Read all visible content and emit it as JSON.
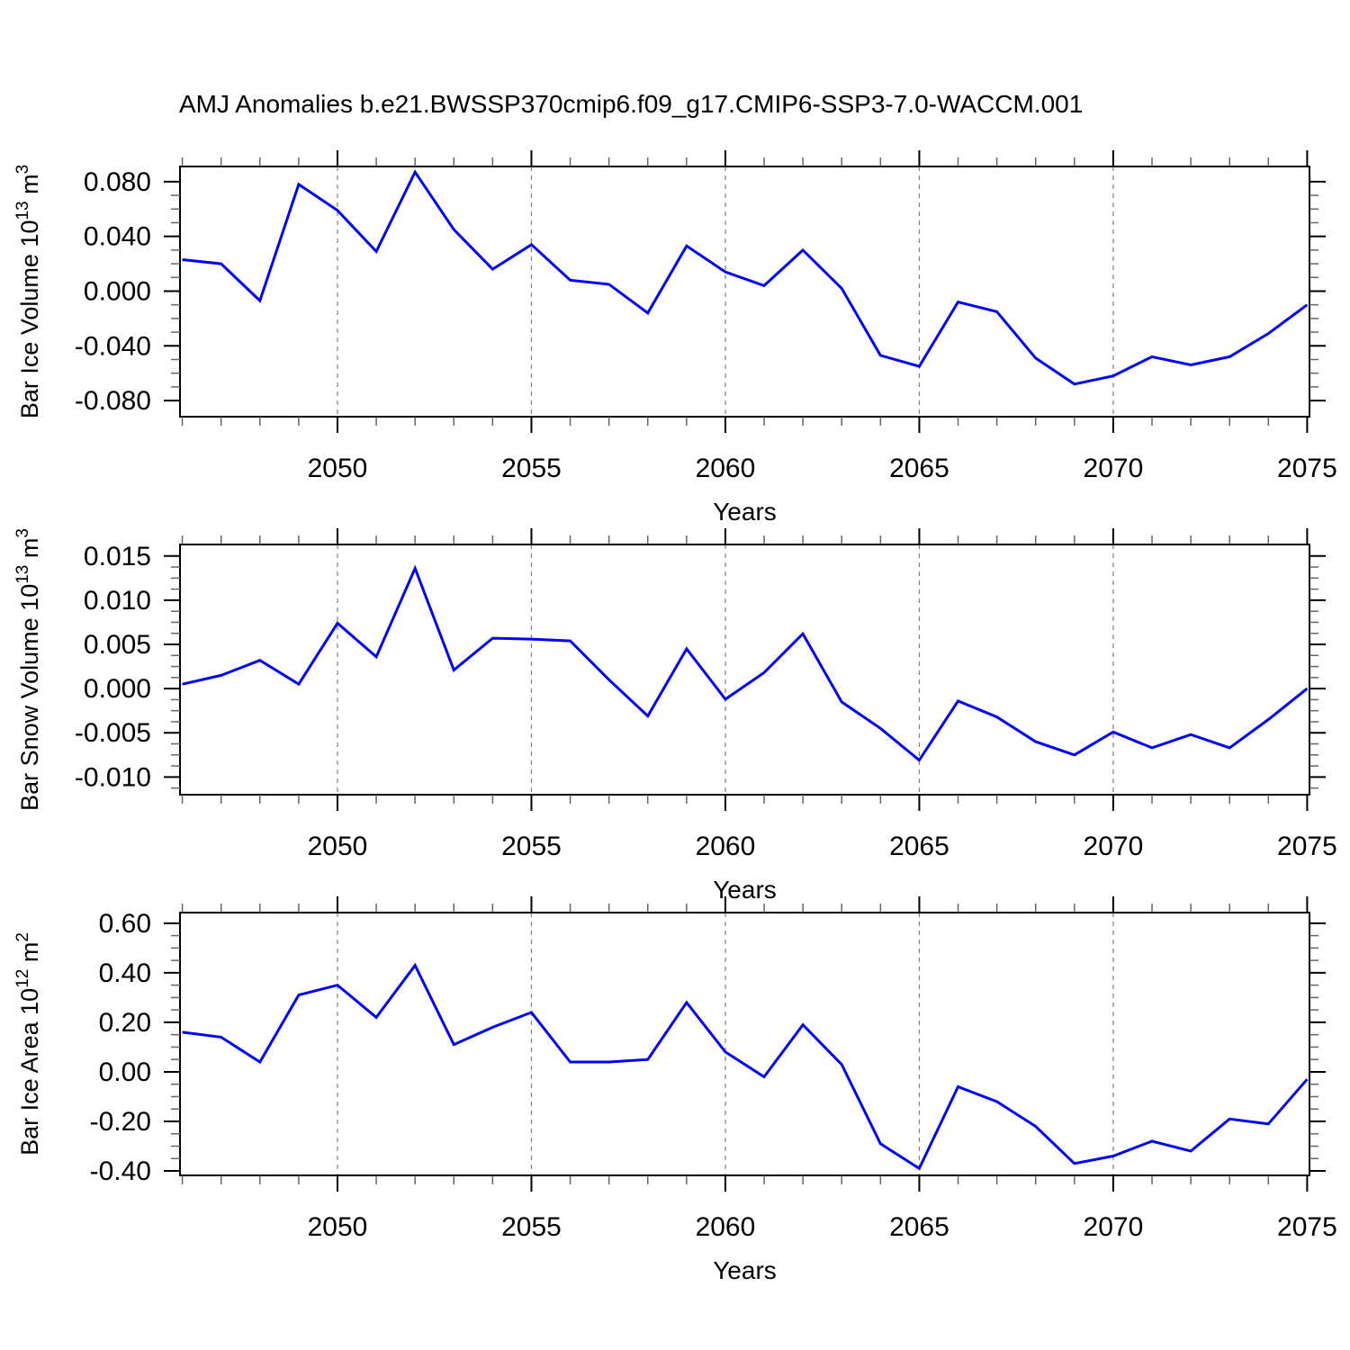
{
  "title": "AMJ Anomalies b.e21.BWSSP370cmip6.f09_g17.CMIP6-SSP3-7.0-WACCM.001",
  "colors": {
    "line": "#0000ff",
    "axis": "#000000",
    "minor_tick": "#666666",
    "grid": "#808080",
    "text": "#000000",
    "background": "#ffffff"
  },
  "x_axis": {
    "label": "Years",
    "range": [
      2045.94,
      2075.06
    ],
    "major_ticks": [
      2050,
      2055,
      2060,
      2065,
      2070,
      2075
    ],
    "major_tick_labels": [
      "2050",
      "2055",
      "2060",
      "2065",
      "2070",
      "2075"
    ],
    "gridlines": [
      2050,
      2055,
      2060,
      2065,
      2070
    ],
    "minor_step": 1
  },
  "years": [
    2046,
    2047,
    2048,
    2049,
    2050,
    2051,
    2052,
    2053,
    2054,
    2055,
    2056,
    2057,
    2058,
    2059,
    2060,
    2061,
    2062,
    2063,
    2064,
    2065,
    2066,
    2067,
    2068,
    2069,
    2070,
    2071,
    2072,
    2073,
    2074,
    2075
  ],
  "chart_data": [
    {
      "type": "line",
      "panel_id": "bar-ice-volume",
      "ylabel_plain": "Bar Ice Volume 10^13 m^3",
      "ylabel_segments": [
        {
          "t": "Bar Ice Volume 10"
        },
        {
          "sup": "13"
        },
        {
          "t": " m"
        },
        {
          "sup": "3"
        }
      ],
      "xlabel": "Years",
      "ylim": [
        -0.0918,
        0.0911
      ],
      "ytick_values": [
        0.08,
        0.04,
        0.0,
        -0.04,
        -0.08
      ],
      "ytick_labels": [
        "0.080",
        "0.040",
        "0.000",
        "-0.040",
        "-0.080"
      ],
      "yminor_step": 0.01,
      "values": [
        0.023,
        0.02,
        -0.007,
        0.078,
        0.059,
        0.029,
        0.087,
        0.045,
        0.016,
        0.034,
        0.008,
        0.005,
        -0.016,
        0.033,
        0.014,
        0.004,
        0.03,
        0.002,
        -0.047,
        -0.055,
        -0.008,
        -0.015,
        -0.049,
        -0.068,
        -0.062,
        -0.048,
        -0.054,
        -0.048,
        -0.031,
        -0.01
      ]
    },
    {
      "type": "line",
      "panel_id": "bar-snow-volume",
      "ylabel_plain": "Bar Snow Volume 10^13 m^3",
      "ylabel_segments": [
        {
          "t": "Bar Snow Volume 10"
        },
        {
          "sup": "13"
        },
        {
          "t": " m"
        },
        {
          "sup": "3"
        }
      ],
      "xlabel": "Years",
      "ylim": [
        -0.012,
        0.0163
      ],
      "ytick_values": [
        0.015,
        0.01,
        0.005,
        0.0,
        -0.005,
        -0.01
      ],
      "ytick_labels": [
        "0.015",
        "0.010",
        "0.005",
        "0.000",
        "-0.005",
        "-0.010"
      ],
      "yminor_step": 0.00125,
      "values": [
        0.0005,
        0.0015,
        0.0032,
        0.0005,
        0.0074,
        0.0036,
        0.0136,
        0.0021,
        0.0057,
        0.0056,
        0.0054,
        0.001,
        -0.0031,
        0.0045,
        -0.0012,
        0.0018,
        0.0062,
        -0.0015,
        -0.0045,
        -0.0081,
        -0.0014,
        -0.0032,
        -0.006,
        -0.0075,
        -0.0049,
        -0.0067,
        -0.0052,
        -0.0067,
        -0.0035,
        0.0
      ]
    },
    {
      "type": "line",
      "panel_id": "bar-ice-area",
      "ylabel_plain": "Bar Ice Area 10^12 m^2",
      "ylabel_segments": [
        {
          "t": "Bar Ice Area 10"
        },
        {
          "sup": "12"
        },
        {
          "t": " m"
        },
        {
          "sup": "2"
        }
      ],
      "xlabel": "Years",
      "ylim": [
        -0.418,
        0.643
      ],
      "ytick_values": [
        0.6,
        0.4,
        0.2,
        0.0,
        -0.2,
        -0.4
      ],
      "ytick_labels": [
        "0.60",
        "0.40",
        "0.20",
        "0.00",
        "-0.20",
        "-0.40"
      ],
      "yminor_step": 0.05,
      "values": [
        0.16,
        0.14,
        0.04,
        0.31,
        0.35,
        0.22,
        0.43,
        0.11,
        0.18,
        0.24,
        0.04,
        0.04,
        0.05,
        0.28,
        0.08,
        -0.02,
        0.19,
        0.03,
        -0.29,
        -0.39,
        -0.06,
        -0.12,
        -0.22,
        -0.37,
        -0.34,
        -0.28,
        -0.32,
        -0.19,
        -0.21,
        -0.03
      ]
    }
  ]
}
